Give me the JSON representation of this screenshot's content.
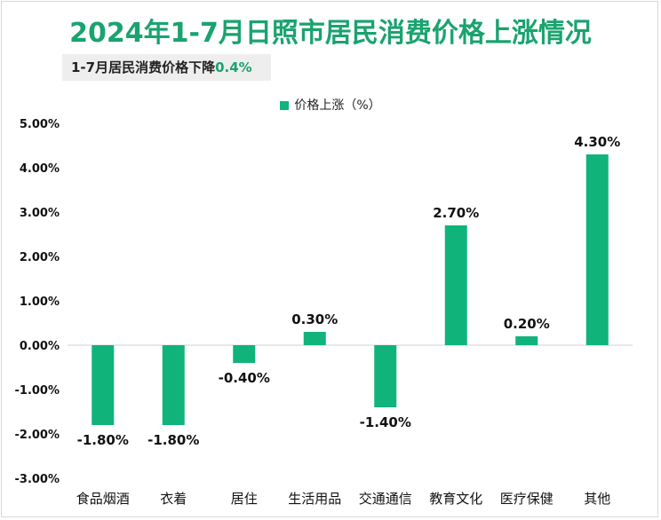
{
  "title": "2024年1-7月日照市居民消费价格上涨情况",
  "subtitle": {
    "text": "1-7月居民消费价格下降",
    "highlight": "0.4%"
  },
  "colors": {
    "accent": "#1aa36f",
    "bar": "#10b47b"
  },
  "chart_data": {
    "type": "bar",
    "categories": [
      "食品烟酒",
      "衣着",
      "居住",
      "生活用品",
      "交通通信",
      "教育文化",
      "医疗保健",
      "其他"
    ],
    "series": [
      {
        "name": "价格上涨（%）",
        "values": [
          -1.8,
          -1.8,
          -0.4,
          0.3,
          -1.4,
          2.7,
          0.2,
          4.3
        ],
        "labels": [
          "-1.80%",
          "-1.80%",
          "-0.40%",
          "0.30%",
          "-1.40%",
          "2.70%",
          "0.20%",
          "4.30%"
        ]
      }
    ],
    "ylim": [
      -3,
      5
    ],
    "yticks": [
      5,
      4,
      3,
      2,
      1,
      0,
      -1,
      -2,
      -3
    ],
    "ytick_labels": [
      "5.00%",
      "4.00%",
      "3.00%",
      "2.00%",
      "1.00%",
      "0.00%",
      "-1.00%",
      "-2.00%",
      "-3.00%"
    ],
    "legend_position": "top-center",
    "grid": false
  }
}
